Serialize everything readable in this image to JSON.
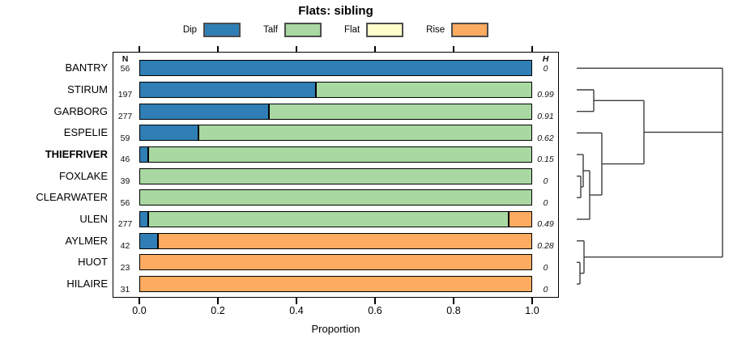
{
  "title": "Flats: sibling",
  "x_axis_label": "Proportion",
  "legend": [
    {
      "name": "Dip",
      "color": "#2f7eb5"
    },
    {
      "name": "Talf",
      "color": "#a9d8a2"
    },
    {
      "name": "Flat",
      "color": "#ffffcc"
    },
    {
      "name": "Rise",
      "color": "#fcab61"
    }
  ],
  "chart_data": {
    "type": "bar",
    "orientation": "horizontal-stacked",
    "title": "Flats: sibling",
    "xlabel": "Proportion",
    "xlim": [
      0.0,
      1.0
    ],
    "xticks": [
      "0.0",
      "0.2",
      "0.4",
      "0.6",
      "0.8",
      "1.0"
    ],
    "series_names": [
      "Dip",
      "Talf",
      "Flat",
      "Rise"
    ],
    "n_column_header": "N",
    "h_column_header": "H",
    "rows": [
      {
        "label": "BANTRY",
        "bold": false,
        "n": "56",
        "h": "0",
        "segments": [
          [
            "Dip",
            1.0
          ]
        ]
      },
      {
        "label": "STIRUM",
        "bold": false,
        "n": "197",
        "h": "0.99",
        "segments": [
          [
            "Dip",
            0.45
          ],
          [
            "Talf",
            0.55
          ]
        ]
      },
      {
        "label": "GARBORG",
        "bold": false,
        "n": "277",
        "h": "0.91",
        "segments": [
          [
            "Dip",
            0.33
          ],
          [
            "Talf",
            0.67
          ]
        ]
      },
      {
        "label": "ESPELIE",
        "bold": false,
        "n": "59",
        "h": "0.62",
        "segments": [
          [
            "Dip",
            0.15
          ],
          [
            "Talf",
            0.85
          ]
        ]
      },
      {
        "label": "THIEFRIVER",
        "bold": true,
        "n": "46",
        "h": "0.15",
        "segments": [
          [
            "Dip",
            0.022
          ],
          [
            "Talf",
            0.978
          ]
        ]
      },
      {
        "label": "FOXLAKE",
        "bold": false,
        "n": "39",
        "h": "0",
        "segments": [
          [
            "Talf",
            1.0
          ]
        ]
      },
      {
        "label": "CLEARWATER",
        "bold": false,
        "n": "56",
        "h": "0",
        "segments": [
          [
            "Talf",
            1.0
          ]
        ]
      },
      {
        "label": "ULEN",
        "bold": false,
        "n": "277",
        "h": "0.49",
        "segments": [
          [
            "Dip",
            0.022
          ],
          [
            "Talf",
            0.918
          ],
          [
            "Rise",
            0.06
          ]
        ]
      },
      {
        "label": "AYLMER",
        "bold": false,
        "n": "42",
        "h": "0.28",
        "segments": [
          [
            "Dip",
            0.048
          ],
          [
            "Rise",
            0.952
          ]
        ]
      },
      {
        "label": "HUOT",
        "bold": false,
        "n": "23",
        "h": "0",
        "segments": [
          [
            "Rise",
            1.0
          ]
        ]
      },
      {
        "label": "HILAIRE",
        "bold": false,
        "n": "31",
        "h": "0",
        "segments": [
          [
            "Rise",
            1.0
          ]
        ]
      }
    ]
  },
  "dendrogram": {
    "leaf_order": [
      "BANTRY",
      "STIRUM",
      "GARBORG",
      "ESPELIE",
      "THIEFRIVER",
      "FOXLAKE",
      "CLEARWATER",
      "ULEN",
      "AYLMER",
      "HUOT",
      "HILAIRE"
    ],
    "clusters": [
      [
        "STIRUM",
        "GARBORG"
      ],
      [
        "FOXLAKE",
        "CLEARWATER"
      ],
      [
        "THIEFRIVER",
        [
          "FOXLAKE",
          "CLEARWATER"
        ]
      ],
      [
        [
          "THIEFRIVER",
          "FOXLAKE",
          "CLEARWATER"
        ],
        "ULEN"
      ],
      [
        "ESPELIE",
        [
          "THIEFRIVER",
          "FOXLAKE",
          "CLEARWATER",
          "ULEN"
        ]
      ],
      [
        [
          "STIRUM",
          "GARBORG"
        ],
        [
          "ESPELIE",
          "THIEFRIVER",
          "FOXLAKE",
          "CLEARWATER",
          "ULEN"
        ]
      ],
      [
        "HUOT",
        "HILAIRE"
      ],
      [
        "AYLMER",
        [
          "HUOT",
          "HILAIRE"
        ]
      ],
      [
        "BANTRY",
        [
          "green-cluster"
        ],
        [
          "orange-cluster"
        ]
      ]
    ],
    "segments": [
      [
        712,
        84.3,
        892,
        84.3
      ],
      [
        712,
        111.0,
        733,
        111.0
      ],
      [
        712,
        137.7,
        733,
        137.7
      ],
      [
        733,
        111.0,
        733,
        137.7
      ],
      [
        733,
        124.3,
        795,
        124.3
      ],
      [
        712,
        164.3,
        743,
        164.3
      ],
      [
        712,
        191.0,
        720,
        191.0
      ],
      [
        712,
        217.7,
        717,
        217.7
      ],
      [
        712,
        244.3,
        717,
        244.3
      ],
      [
        717,
        217.7,
        717,
        244.3
      ],
      [
        717,
        231.0,
        720,
        231.0
      ],
      [
        720,
        191.0,
        720,
        231.0
      ],
      [
        720,
        211.0,
        728,
        211.0
      ],
      [
        712,
        271.0,
        728,
        271.0
      ],
      [
        728,
        211.0,
        728,
        271.0
      ],
      [
        728,
        241.0,
        743,
        241.0
      ],
      [
        743,
        164.3,
        743,
        241.0
      ],
      [
        743,
        202.6,
        795,
        202.6
      ],
      [
        795,
        124.3,
        795,
        202.6
      ],
      [
        795,
        163.4,
        892,
        163.4
      ],
      [
        712,
        297.7,
        721,
        297.7
      ],
      [
        712,
        324.3,
        716,
        324.3
      ],
      [
        712,
        351.0,
        716,
        351.0
      ],
      [
        716,
        324.3,
        716,
        351.0
      ],
      [
        716,
        337.7,
        721,
        337.7
      ],
      [
        721,
        297.7,
        721,
        337.7
      ],
      [
        721,
        317.7,
        892,
        317.7
      ],
      [
        892,
        84.3,
        892,
        317.7
      ]
    ],
    "line_color": "#3d3d3d"
  }
}
